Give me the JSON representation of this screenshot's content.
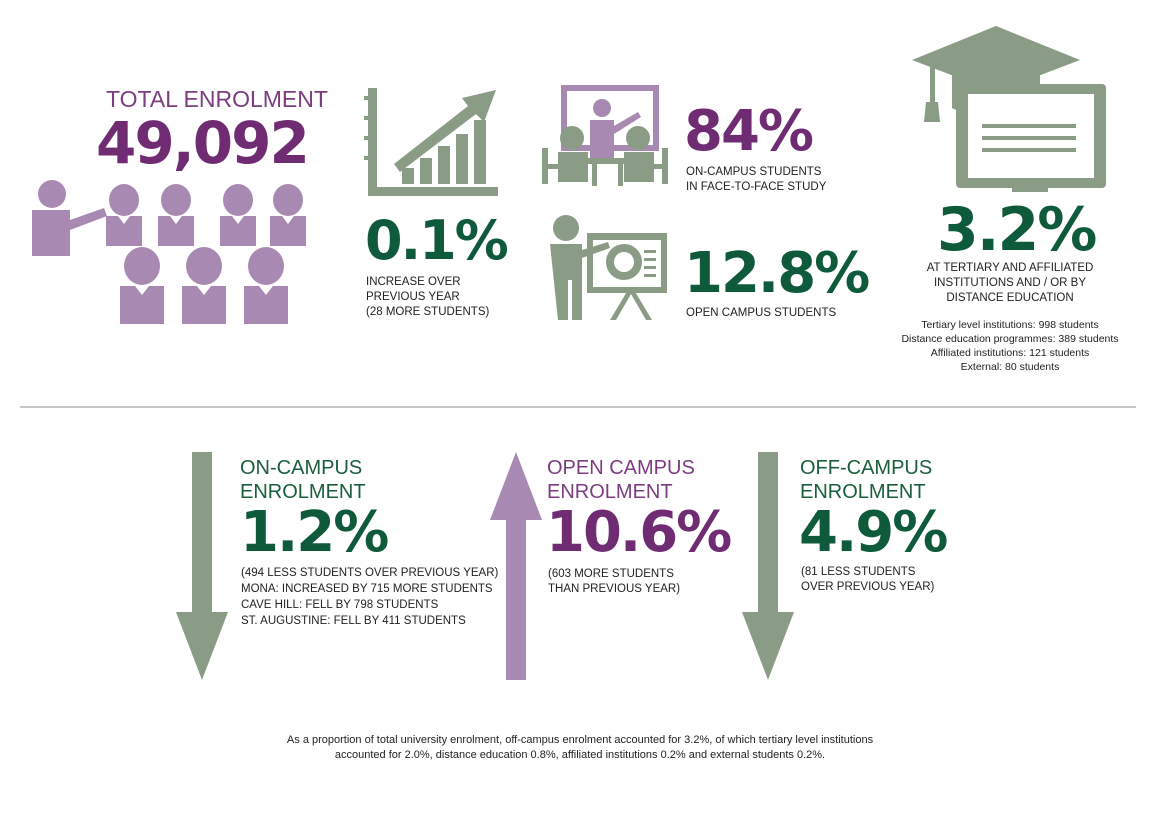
{
  "colors": {
    "purple": "#6f2c72",
    "light_purple": "#a889b2",
    "green": "#0f5a3a",
    "gray_green": "#8a9c86",
    "divider": "#c8c8c8"
  },
  "total": {
    "label": "TOTAL ENROLMENT",
    "value": "49,092"
  },
  "increase": {
    "value": "0.1%",
    "lines": [
      "INCREASE OVER",
      "PREVIOUS YEAR",
      "(28 MORE STUDENTS)"
    ]
  },
  "face_to_face": {
    "value": "84%",
    "lines": [
      "ON-CAMPUS STUDENTS",
      "IN FACE-TO-FACE STUDY"
    ]
  },
  "open_campus": {
    "value": "12.8%",
    "lines": [
      "OPEN CAMPUS STUDENTS"
    ]
  },
  "tertiary": {
    "value": "3.2%",
    "lines": [
      "AT TERTIARY AND AFFILIATED",
      "INSTITUTIONS AND / OR BY",
      "DISTANCE EDUCATION"
    ],
    "details": [
      "Tertiary level institutions: 998 students",
      "Distance education programmes: 389 students",
      "Affiliated institutions: 121 students",
      "External: 80 students"
    ]
  },
  "on_campus_enrolment": {
    "title_lines": [
      "ON-CAMPUS",
      "ENROLMENT"
    ],
    "value": "1.2%",
    "direction": "down",
    "lines": [
      "(494 LESS STUDENTS OVER PREVIOUS YEAR)",
      "MONA: INCREASED BY 715 MORE STUDENTS",
      "CAVE HILL: FELL BY 798 STUDENTS",
      "ST. AUGUSTINE: FELL BY 411 STUDENTS"
    ]
  },
  "open_campus_enrolment": {
    "title_lines": [
      "OPEN CAMPUS",
      "ENROLMENT"
    ],
    "value": "10.6%",
    "direction": "up",
    "lines": [
      "(603 MORE STUDENTS",
      "THAN PREVIOUS YEAR)"
    ]
  },
  "off_campus_enrolment": {
    "title_lines": [
      "OFF-CAMPUS",
      "ENROLMENT"
    ],
    "value": "4.9%",
    "direction": "down",
    "lines": [
      "(81 LESS STUDENTS",
      "OVER PREVIOUS YEAR)"
    ]
  },
  "footnote": [
    "As a proportion of total university enrolment, off-campus enrolment accounted for 3.2%, of which tertiary level institutions",
    "accounted for 2.0%, distance education 0.8%, affiliated institutions 0.2% and external students 0.2%."
  ]
}
